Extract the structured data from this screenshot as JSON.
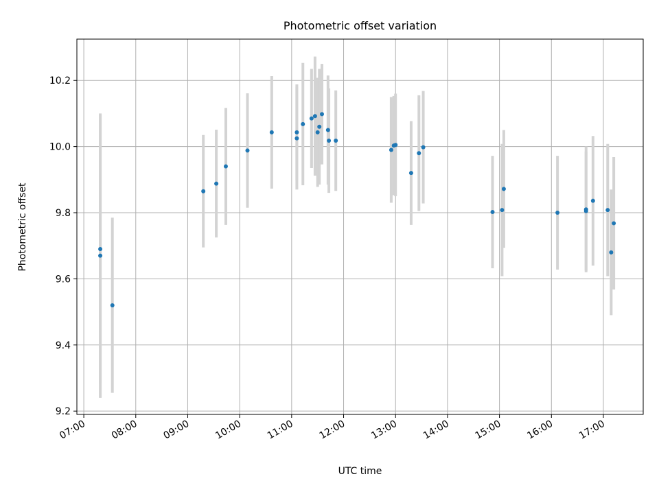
{
  "chart_data": {
    "type": "scatter",
    "title": "Photometric offset variation",
    "xlabel": "UTC time",
    "ylabel": "Photometric offset",
    "xlim": [
      "06:52",
      "17:46"
    ],
    "ylim": [
      9.19,
      10.325
    ],
    "x_ticks": [
      "07:00",
      "08:00",
      "09:00",
      "10:00",
      "11:00",
      "12:00",
      "13:00",
      "14:00",
      "15:00",
      "16:00",
      "17:00"
    ],
    "y_ticks": [
      "9.2",
      "9.4",
      "9.6",
      "9.8",
      "10.0",
      "10.2"
    ],
    "grid": true,
    "colors": {
      "marker": "#1f77b4",
      "errorbar": "#d3d3d3",
      "grid": "#b0b0b0"
    },
    "points": [
      {
        "x": "07:19",
        "y": 9.69,
        "err": 0.405
      },
      {
        "x": "07:19",
        "y": 9.67,
        "err": 0.43
      },
      {
        "x": "07:33",
        "y": 9.52,
        "err": 0.265
      },
      {
        "x": "09:18",
        "y": 9.865,
        "err": 0.17
      },
      {
        "x": "09:33",
        "y": 9.888,
        "err": 0.163
      },
      {
        "x": "09:44",
        "y": 9.94,
        "err": 0.177
      },
      {
        "x": "10:09",
        "y": 9.988,
        "err": 0.173
      },
      {
        "x": "10:37",
        "y": 10.043,
        "err": 0.17
      },
      {
        "x": "11:06",
        "y": 10.043,
        "err": 0.145
      },
      {
        "x": "11:06",
        "y": 10.025,
        "err": 0.155
      },
      {
        "x": "11:13",
        "y": 10.068,
        "err": 0.185
      },
      {
        "x": "11:23",
        "y": 10.085,
        "err": 0.15
      },
      {
        "x": "11:27",
        "y": 10.092,
        "err": 0.18
      },
      {
        "x": "11:30",
        "y": 10.043,
        "err": 0.165
      },
      {
        "x": "11:32",
        "y": 10.06,
        "err": 0.175
      },
      {
        "x": "11:35",
        "y": 10.098,
        "err": 0.152
      },
      {
        "x": "11:42",
        "y": 10.05,
        "err": 0.165
      },
      {
        "x": "11:43",
        "y": 10.018,
        "err": 0.158
      },
      {
        "x": "11:51",
        "y": 10.018,
        "err": 0.152
      },
      {
        "x": "12:55",
        "y": 9.99,
        "err": 0.16
      },
      {
        "x": "12:58",
        "y": 10.003,
        "err": 0.15
      },
      {
        "x": "13:00",
        "y": 10.005,
        "err": 0.155
      },
      {
        "x": "13:18",
        "y": 9.92,
        "err": 0.157
      },
      {
        "x": "13:27",
        "y": 9.98,
        "err": 0.175
      },
      {
        "x": "13:32",
        "y": 9.998,
        "err": 0.17
      },
      {
        "x": "14:52",
        "y": 9.802,
        "err": 0.17
      },
      {
        "x": "15:03",
        "y": 9.808,
        "err": 0.2
      },
      {
        "x": "15:05",
        "y": 9.872,
        "err": 0.178
      },
      {
        "x": "16:07",
        "y": 9.8,
        "err": 0.172
      },
      {
        "x": "16:40",
        "y": 9.81,
        "err": 0.19
      },
      {
        "x": "16:40",
        "y": 9.805,
        "err": 0.18
      },
      {
        "x": "16:48",
        "y": 9.836,
        "err": 0.196
      },
      {
        "x": "17:05",
        "y": 9.808,
        "err": 0.2
      },
      {
        "x": "17:09",
        "y": 9.68,
        "err": 0.19
      },
      {
        "x": "17:12",
        "y": 9.768,
        "err": 0.2
      }
    ]
  }
}
